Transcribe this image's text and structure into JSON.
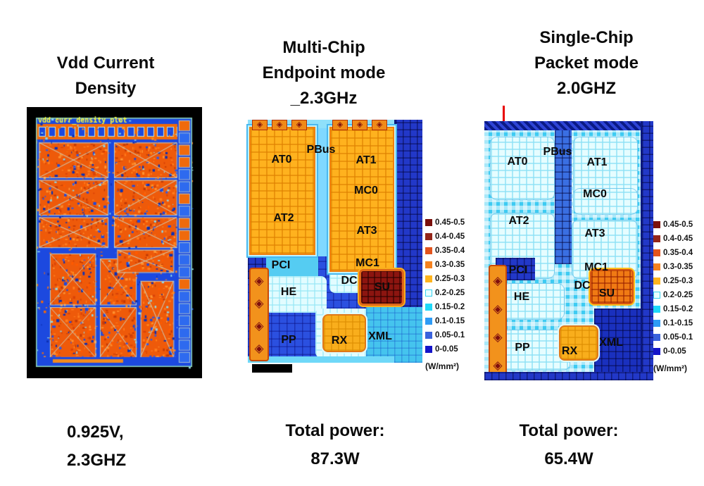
{
  "panels": {
    "left": {
      "title_lines": [
        "Vdd Current",
        "Density"
      ],
      "plot_label": "vdd curr_density plot",
      "caption_lines": [
        "0.925V,",
        "2.3GHZ"
      ]
    },
    "middle": {
      "title_lines": [
        "Multi-Chip",
        "Endpoint mode",
        "_2.3GHz"
      ],
      "caption_lines": [
        "Total power:",
        "87.3W"
      ],
      "regions": [
        "AT0",
        "PBus",
        "AT1",
        "MC0",
        "AT2",
        "AT3",
        "PCI",
        "MC1",
        "DC",
        "SU",
        "HE",
        "PP",
        "RX",
        "XML"
      ]
    },
    "right": {
      "title_lines": [
        "Single-Chip",
        "Packet mode",
        "2.0GHZ"
      ],
      "caption_lines": [
        "Total power:",
        "65.4W"
      ],
      "regions": [
        "AT0",
        "PBus",
        "AT1",
        "MC0",
        "AT2",
        "AT3",
        "PCI",
        "MC1",
        "DC",
        "SU",
        "HE",
        "PP",
        "RX",
        "XML"
      ]
    }
  },
  "legend": {
    "entries": [
      {
        "label": "0.45-0.5",
        "color": "#7A100C"
      },
      {
        "label": "0.4-0.45",
        "color": "#94261A"
      },
      {
        "label": "0.35-0.4",
        "color": "#E2541E"
      },
      {
        "label": "0.3-0.35",
        "color": "#F58220"
      },
      {
        "label": "0.25-0.3",
        "color": "#FFB41E"
      },
      {
        "label": "0.2-0.25",
        "color": "#EAFFFF",
        "border": "#35D2F0"
      },
      {
        "label": "0.15-0.2",
        "color": "#1FD8F8"
      },
      {
        "label": "0.1-0.15",
        "color": "#2E9BF5"
      },
      {
        "label": "0.05-0.1",
        "color": "#3A62DC"
      },
      {
        "label": "0-0.05",
        "color": "#1414C8"
      }
    ],
    "unit": "(W/mm²)"
  },
  "icons": {
    "diamond": "◈"
  },
  "palette": {
    "hot_block": "#FFB21E",
    "hot_border": "#F08010",
    "su_multichip": "#8C1510",
    "su_singlechip": "#F07A14",
    "rx_block": "#F9AE1C",
    "cool_base": "#3ECBF2",
    "blue_base": "#2B50E0",
    "pale_block": "#E6FDFF",
    "chip_orange": "#EE5A0A",
    "chip_blue": "#1C49DF",
    "plot_label_yellow": "#FFFF33"
  },
  "chart_data": [
    {
      "type": "heatmap",
      "title": "Multi-Chip Endpoint mode _2.3GHz",
      "total_power": "87.3W",
      "unit": "W/mm²",
      "legend_bins": [
        "0.45-0.5",
        "0.4-0.45",
        "0.35-0.4",
        "0.3-0.35",
        "0.25-0.3",
        "0.2-0.25",
        "0.15-0.2",
        "0.1-0.15",
        "0.05-0.1",
        "0-0.05"
      ],
      "legend_position": "right",
      "regions": [
        {
          "name": "AT0",
          "density": "0.25-0.3"
        },
        {
          "name": "AT1",
          "density": "0.25-0.3"
        },
        {
          "name": "AT2",
          "density": "0.25-0.3"
        },
        {
          "name": "AT3",
          "density": "0.25-0.3"
        },
        {
          "name": "MC0",
          "density": "0.25-0.3"
        },
        {
          "name": "MC1",
          "density": "0.25-0.3"
        },
        {
          "name": "PBus",
          "density": "0.1-0.2"
        },
        {
          "name": "PCI",
          "density": "0.05-0.15"
        },
        {
          "name": "HE",
          "density": "0.2-0.25"
        },
        {
          "name": "DC",
          "density": "0.2-0.25"
        },
        {
          "name": "SU",
          "density": "0.45-0.5"
        },
        {
          "name": "PP",
          "density": "0.05-0.1"
        },
        {
          "name": "RX",
          "density": "0.3-0.35"
        },
        {
          "name": "XML",
          "density": "0.15-0.2"
        }
      ]
    },
    {
      "type": "heatmap",
      "title": "Single-Chip Packet mode 2.0GHZ",
      "total_power": "65.4W",
      "unit": "W/mm²",
      "legend_bins": [
        "0.45-0.5",
        "0.4-0.45",
        "0.35-0.4",
        "0.3-0.35",
        "0.25-0.3",
        "0.2-0.25",
        "0.15-0.2",
        "0.1-0.15",
        "0.05-0.1",
        "0-0.05"
      ],
      "legend_position": "right",
      "regions": [
        {
          "name": "AT0",
          "density": "0.2-0.25"
        },
        {
          "name": "AT1",
          "density": "0.2-0.25"
        },
        {
          "name": "AT2",
          "density": "0.2-0.25"
        },
        {
          "name": "AT3",
          "density": "0.2-0.25"
        },
        {
          "name": "MC0",
          "density": "0.2-0.25"
        },
        {
          "name": "MC1",
          "density": "0.15-0.2"
        },
        {
          "name": "PBus",
          "density": "0.05-0.1"
        },
        {
          "name": "PCI",
          "density": "0.05-0.1"
        },
        {
          "name": "HE",
          "density": "0.2-0.25"
        },
        {
          "name": "DC",
          "density": "0.15-0.2"
        },
        {
          "name": "SU",
          "density": "0.35-0.4"
        },
        {
          "name": "PP",
          "density": "0.2-0.25"
        },
        {
          "name": "RX",
          "density": "0.25-0.3"
        },
        {
          "name": "XML",
          "density": "0.05-0.1"
        }
      ]
    }
  ]
}
